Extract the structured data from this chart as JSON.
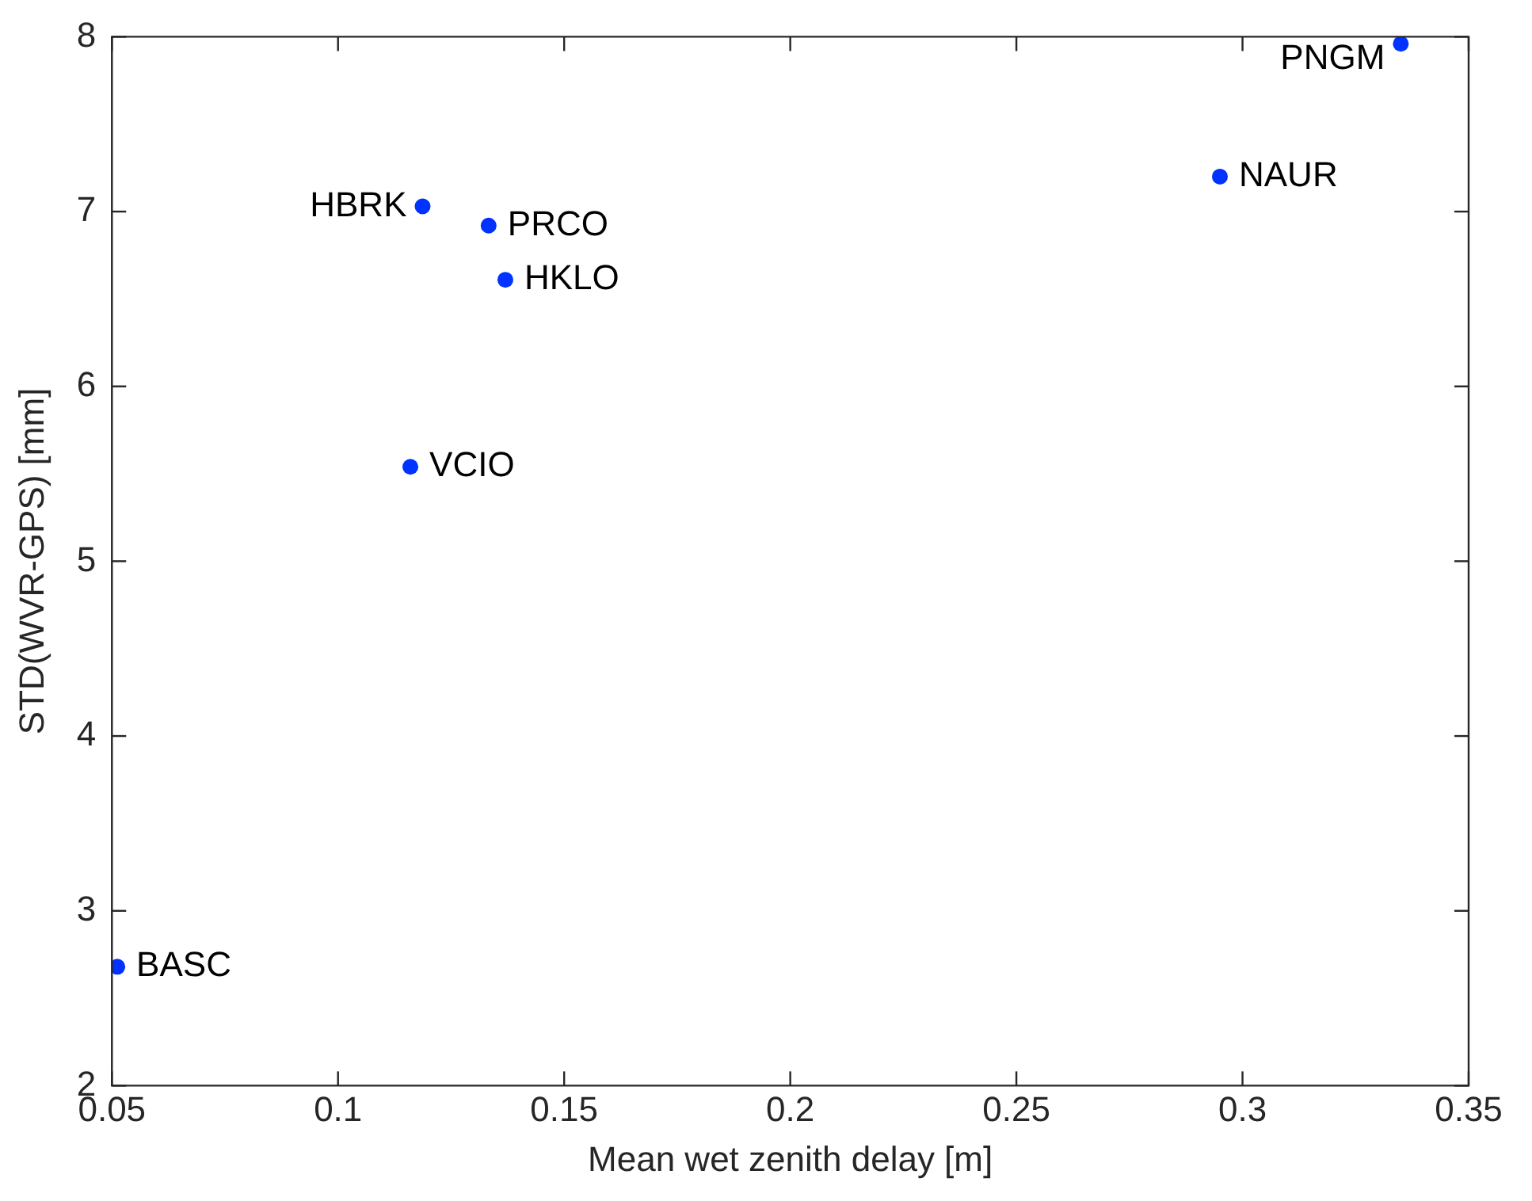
{
  "chart_data": {
    "type": "scatter",
    "xlabel": "Mean wet zenith delay [m]",
    "ylabel": "STD(WVR-GPS) [mm]",
    "x": [
      0.0512,
      0.1187,
      0.1333,
      0.137,
      0.116,
      0.295,
      0.335
    ],
    "series": [
      {
        "color": "#0033ff",
        "values": [
          2.68,
          7.03,
          6.92,
          6.61,
          5.54,
          7.2,
          7.96
        ]
      }
    ],
    "annotations": [
      {
        "text": "BASC",
        "x": 0.0512,
        "y": 2.68
      },
      {
        "text": "HBRK",
        "x": 0.1187,
        "y": 7.03
      },
      {
        "text": "PRCO",
        "x": 0.1333,
        "y": 6.92
      },
      {
        "text": "HKLO",
        "x": 0.137,
        "y": 6.61
      },
      {
        "text": "VCIO",
        "x": 0.116,
        "y": 5.54
      },
      {
        "text": "NAUR",
        "x": 0.295,
        "y": 7.2
      },
      {
        "text": "PNGM",
        "x": 0.335,
        "y": 7.96
      }
    ],
    "xlim": [
      0.05,
      0.35
    ],
    "xticks": [
      0.05,
      0.1,
      0.15,
      0.2,
      0.25,
      0.3,
      0.35
    ],
    "ylim": [
      2,
      8
    ],
    "yticks": [
      2,
      3,
      4,
      5,
      6,
      7,
      8
    ],
    "grid": false,
    "legend": false,
    "marker": "circle"
  }
}
